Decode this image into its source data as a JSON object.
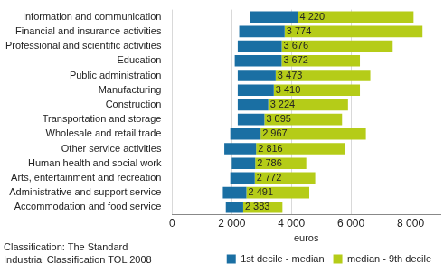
{
  "chart_data": {
    "type": "bar",
    "orientation": "horizontal",
    "categories": [
      "Information and communication",
      "Financial and insurance activities",
      "Professional and scientific activities",
      "Education",
      "Public administration",
      "Manufacturing",
      "Construction",
      "Transportation and storage",
      "Wholesale and retail trade",
      "Other service activities",
      "Human health and social work",
      "Arts, entertainment and recreation",
      "Administrative and support service",
      "Accommodation and food service"
    ],
    "series": [
      {
        "name": "1st decile - median",
        "color": "#1a6fa3",
        "values": [
          [
            2600,
            4220
          ],
          [
            2250,
            3774
          ],
          [
            2200,
            3676
          ],
          [
            2100,
            3672
          ],
          [
            2200,
            3473
          ],
          [
            2200,
            3410
          ],
          [
            2200,
            3224
          ],
          [
            2200,
            3095
          ],
          [
            1950,
            2967
          ],
          [
            1750,
            2816
          ],
          [
            2000,
            2786
          ],
          [
            1950,
            2772
          ],
          [
            1700,
            2491
          ],
          [
            1800,
            2383
          ]
        ],
        "data_labels": true,
        "value_labels": [
          "4 220",
          "3 774",
          "3 676",
          "3 672",
          "3 473",
          "3 410",
          "3 224",
          "3 095",
          "2 967",
          "2 816",
          "2 786",
          "2 772",
          "2 491",
          "2 383"
        ]
      },
      {
        "name": "median - 9th decile",
        "color": "#b5cc18",
        "values": [
          [
            4220,
            8100
          ],
          [
            3774,
            8400
          ],
          [
            3676,
            7400
          ],
          [
            3672,
            6300
          ],
          [
            3473,
            6650
          ],
          [
            3410,
            6300
          ],
          [
            3224,
            5900
          ],
          [
            3095,
            5700
          ],
          [
            2967,
            6500
          ],
          [
            2816,
            5800
          ],
          [
            2786,
            4500
          ],
          [
            2772,
            4800
          ],
          [
            2491,
            4600
          ],
          [
            2383,
            3700
          ]
        ]
      }
    ],
    "x_label": "euros",
    "xlim": [
      0,
      9000
    ],
    "xticks": [
      {
        "value": 0,
        "label": "0"
      },
      {
        "value": 2000,
        "label": "2 000"
      },
      {
        "value": 4000,
        "label": "4 000"
      },
      {
        "value": 6000,
        "label": "6 000"
      },
      {
        "value": 8000,
        "label": "8 000"
      }
    ],
    "grid": true,
    "legend": "bottom-right",
    "annotations": [
      "Classification: The Standard",
      "Industrial Classification TOL 2008"
    ]
  }
}
